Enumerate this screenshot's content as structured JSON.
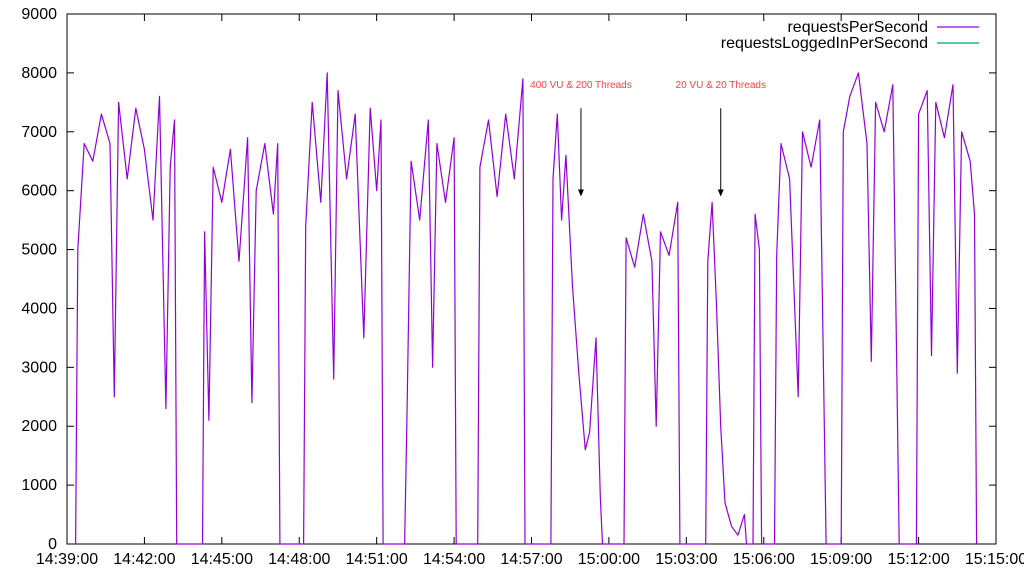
{
  "chart_data": {
    "type": "line",
    "title": "",
    "xlabel": "",
    "ylabel": "",
    "xlim": [
      "14:39:00",
      "15:15:00"
    ],
    "ylim": [
      0,
      9000
    ],
    "grid": false,
    "legend_position": "top-right",
    "x_ticks": [
      "14:39:00",
      "14:42:00",
      "14:45:00",
      "14:48:00",
      "14:51:00",
      "14:54:00",
      "14:57:00",
      "15:00:00",
      "15:03:00",
      "15:06:00",
      "15:09:00",
      "15:12:00",
      "15:15:00"
    ],
    "y_ticks": [
      "0",
      "1000",
      "2000",
      "3000",
      "4000",
      "5000",
      "6000",
      "7000",
      "8000",
      "9000"
    ],
    "series": [
      {
        "name": "requestsPerSecond",
        "color": "#9400d3",
        "points": [
          [
            "14:39:20",
            0
          ],
          [
            "14:39:25",
            5000
          ],
          [
            "14:39:40",
            6800
          ],
          [
            "14:40:00",
            6500
          ],
          [
            "14:40:20",
            7300
          ],
          [
            "14:40:40",
            6800
          ],
          [
            "14:40:50",
            2500
          ],
          [
            "14:41:00",
            7500
          ],
          [
            "14:41:20",
            6200
          ],
          [
            "14:41:40",
            7400
          ],
          [
            "14:42:00",
            6700
          ],
          [
            "14:42:20",
            5500
          ],
          [
            "14:42:35",
            7600
          ],
          [
            "14:42:50",
            2300
          ],
          [
            "14:43:00",
            6400
          ],
          [
            "14:43:10",
            7200
          ],
          [
            "14:43:15",
            0
          ],
          [
            "14:44:15",
            0
          ],
          [
            "14:44:20",
            5300
          ],
          [
            "14:44:30",
            2100
          ],
          [
            "14:44:40",
            6400
          ],
          [
            "14:45:00",
            5800
          ],
          [
            "14:45:20",
            6700
          ],
          [
            "14:45:40",
            4800
          ],
          [
            "14:46:00",
            6900
          ],
          [
            "14:46:10",
            2400
          ],
          [
            "14:46:20",
            6000
          ],
          [
            "14:46:40",
            6800
          ],
          [
            "14:47:00",
            5600
          ],
          [
            "14:47:10",
            6800
          ],
          [
            "14:47:15",
            0
          ],
          [
            "14:48:10",
            0
          ],
          [
            "14:48:15",
            5400
          ],
          [
            "14:48:30",
            7500
          ],
          [
            "14:48:50",
            5800
          ],
          [
            "14:49:05",
            8000
          ],
          [
            "14:49:20",
            2800
          ],
          [
            "14:49:30",
            7700
          ],
          [
            "14:49:50",
            6200
          ],
          [
            "14:50:10",
            7300
          ],
          [
            "14:50:30",
            3500
          ],
          [
            "14:50:45",
            7400
          ],
          [
            "14:51:00",
            6000
          ],
          [
            "14:51:10",
            7200
          ],
          [
            "14:51:15",
            0
          ],
          [
            "14:52:05",
            0
          ],
          [
            "14:52:10",
            2000
          ],
          [
            "14:52:20",
            6500
          ],
          [
            "14:52:40",
            5500
          ],
          [
            "14:53:00",
            7200
          ],
          [
            "14:53:10",
            3000
          ],
          [
            "14:53:20",
            6800
          ],
          [
            "14:53:40",
            5800
          ],
          [
            "14:54:00",
            6900
          ],
          [
            "14:54:05",
            0
          ],
          [
            "14:54:55",
            0
          ],
          [
            "14:55:00",
            6400
          ],
          [
            "14:55:20",
            7200
          ],
          [
            "14:55:40",
            5900
          ],
          [
            "14:56:00",
            7300
          ],
          [
            "14:56:20",
            6200
          ],
          [
            "14:56:40",
            7900
          ],
          [
            "14:56:45",
            0
          ],
          [
            "14:57:45",
            0
          ],
          [
            "14:57:50",
            6200
          ],
          [
            "14:58:00",
            7300
          ],
          [
            "14:58:10",
            5500
          ],
          [
            "14:58:20",
            6600
          ],
          [
            "14:58:35",
            4400
          ],
          [
            "14:58:50",
            2900
          ],
          [
            "14:59:05",
            1600
          ],
          [
            "14:59:15",
            1900
          ],
          [
            "14:59:30",
            3500
          ],
          [
            "14:59:40",
            800
          ],
          [
            "14:59:45",
            0
          ],
          [
            "15:00:35",
            0
          ],
          [
            "15:00:40",
            5200
          ],
          [
            "15:01:00",
            4700
          ],
          [
            "15:01:20",
            5600
          ],
          [
            "15:01:40",
            4800
          ],
          [
            "15:01:50",
            2000
          ],
          [
            "15:02:00",
            5300
          ],
          [
            "15:02:20",
            4900
          ],
          [
            "15:02:40",
            5800
          ],
          [
            "15:02:45",
            0
          ],
          [
            "15:03:45",
            0
          ],
          [
            "15:03:50",
            4800
          ],
          [
            "15:04:00",
            5800
          ],
          [
            "15:04:10",
            4100
          ],
          [
            "15:04:20",
            2000
          ],
          [
            "15:04:30",
            700
          ],
          [
            "15:04:45",
            300
          ],
          [
            "15:05:00",
            150
          ],
          [
            "15:05:15",
            500
          ],
          [
            "15:05:20",
            0
          ],
          [
            "15:05:35",
            0
          ],
          [
            "15:05:40",
            5600
          ],
          [
            "15:05:50",
            5000
          ],
          [
            "15:05:55",
            0
          ],
          [
            "15:06:25",
            0
          ],
          [
            "15:06:30",
            4900
          ],
          [
            "15:06:40",
            6800
          ],
          [
            "15:07:00",
            6200
          ],
          [
            "15:07:20",
            2500
          ],
          [
            "15:07:30",
            7000
          ],
          [
            "15:07:50",
            6400
          ],
          [
            "15:08:10",
            7200
          ],
          [
            "15:08:25",
            0
          ],
          [
            "15:09:00",
            0
          ],
          [
            "15:09:05",
            7000
          ],
          [
            "15:09:20",
            7600
          ],
          [
            "15:09:40",
            8000
          ],
          [
            "15:10:00",
            6800
          ],
          [
            "15:10:10",
            3100
          ],
          [
            "15:10:20",
            7500
          ],
          [
            "15:10:40",
            7000
          ],
          [
            "15:11:00",
            7800
          ],
          [
            "15:11:15",
            0
          ],
          [
            "15:11:55",
            0
          ],
          [
            "15:12:00",
            7300
          ],
          [
            "15:12:20",
            7700
          ],
          [
            "15:12:30",
            3200
          ],
          [
            "15:12:40",
            7500
          ],
          [
            "15:13:00",
            6900
          ],
          [
            "15:13:20",
            7800
          ],
          [
            "15:13:30",
            2900
          ],
          [
            "15:13:40",
            7000
          ],
          [
            "15:14:00",
            6500
          ],
          [
            "15:14:10",
            5600
          ],
          [
            "15:14:15",
            0
          ]
        ]
      },
      {
        "name": "requestsLoggedInPerSecond",
        "color": "#009e73",
        "points": []
      }
    ],
    "annotations": [
      {
        "text": "400 VU & 200 Threads",
        "x": "14:58:55",
        "arrow_from": 7400,
        "arrow_to": 5900,
        "color": "#ff4040"
      },
      {
        "text": "20 VU & 20 Threads",
        "x": "15:04:20",
        "arrow_from": 7400,
        "arrow_to": 5900,
        "color": "#ff4040"
      }
    ]
  }
}
